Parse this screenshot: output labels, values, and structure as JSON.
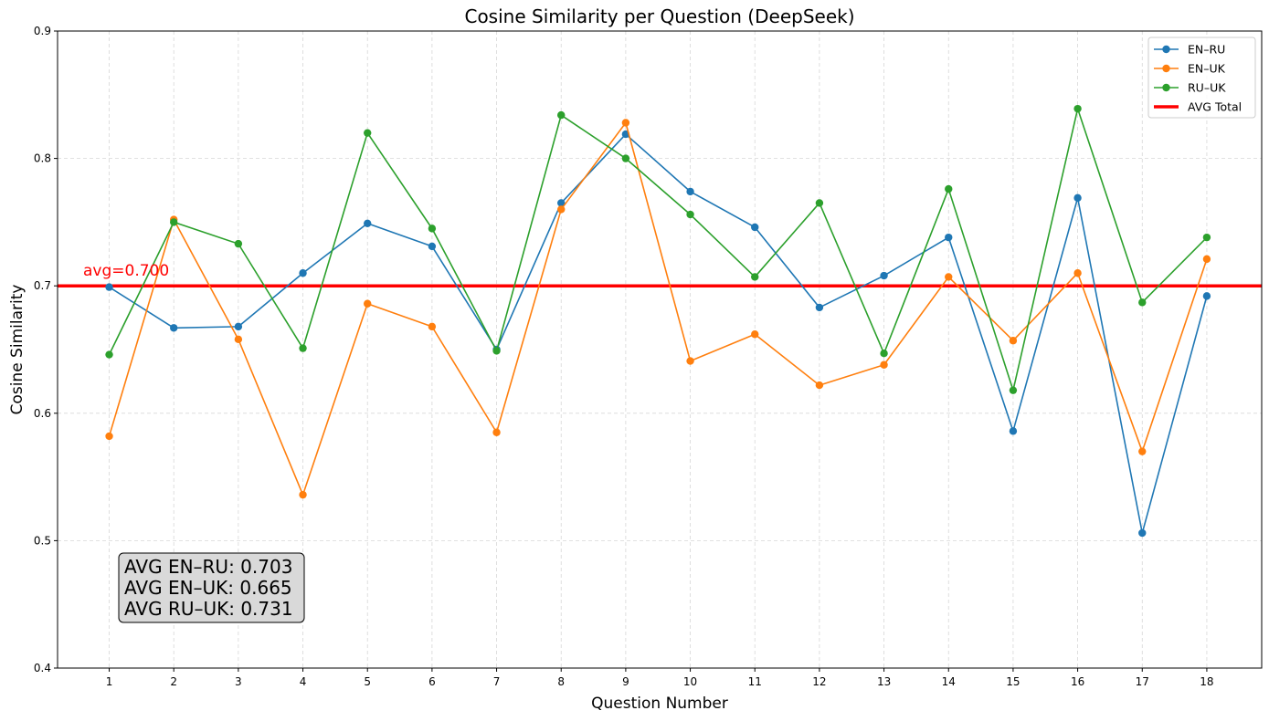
{
  "chart_data": {
    "type": "line",
    "title": "Cosine Similarity per Question (DeepSeek)",
    "xlabel": "Question Number",
    "ylabel": "Cosine Similarity",
    "x": [
      1,
      2,
      3,
      4,
      5,
      6,
      7,
      8,
      9,
      10,
      11,
      12,
      13,
      14,
      15,
      16,
      17,
      18
    ],
    "x_tick_labels": [
      "1",
      "2",
      "3",
      "4",
      "5",
      "6",
      "7",
      "8",
      "9",
      "10",
      "11",
      "12",
      "13",
      "14",
      "15",
      "16",
      "17",
      "18"
    ],
    "xlim": [
      0.2,
      18.85
    ],
    "ylim": [
      0.4,
      0.9
    ],
    "y_ticks": [
      0.4,
      0.5,
      0.6,
      0.7,
      0.8,
      0.9
    ],
    "y_tick_labels": [
      "0.4",
      "0.5",
      "0.6",
      "0.7",
      "0.8",
      "0.9"
    ],
    "grid": true,
    "grid_style": "dashed",
    "legend_position": "top-right",
    "series": [
      {
        "name": "EN–RU",
        "color": "#1f77b4",
        "values": [
          0.699,
          0.667,
          0.668,
          0.71,
          0.749,
          0.731,
          0.65,
          0.765,
          0.819,
          0.774,
          0.746,
          0.683,
          0.708,
          0.738,
          0.586,
          0.769,
          0.506,
          0.692
        ]
      },
      {
        "name": "EN–UK",
        "color": "#ff7f0e",
        "values": [
          0.582,
          0.752,
          0.658,
          0.536,
          0.686,
          0.668,
          0.585,
          0.76,
          0.828,
          0.641,
          0.662,
          0.622,
          0.638,
          0.707,
          0.657,
          0.71,
          0.57,
          0.721
        ]
      },
      {
        "name": "RU–UK",
        "color": "#2ca02c",
        "values": [
          0.646,
          0.75,
          0.733,
          0.651,
          0.82,
          0.745,
          0.649,
          0.834,
          0.8,
          0.756,
          0.707,
          0.765,
          0.647,
          0.776,
          0.618,
          0.839,
          0.687,
          0.738
        ]
      }
    ],
    "reference_line": {
      "name": "AVG Total",
      "value": 0.7,
      "color": "#ff0000",
      "label": "avg=0.700"
    },
    "annotations": {
      "stats_box": [
        "AVG EN–RU: 0.703",
        "AVG EN–UK: 0.665",
        "AVG RU–UK: 0.731"
      ]
    }
  }
}
